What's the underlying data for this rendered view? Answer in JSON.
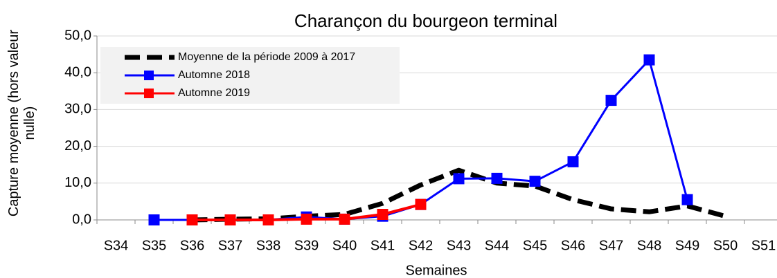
{
  "chart_data": {
    "type": "line",
    "title": "Charançon du bourgeon terminal",
    "x_label": "Semaines",
    "y_label": "Capture moyenne (hors valeur nulle)",
    "categories": [
      "S34",
      "S35",
      "S36",
      "S37",
      "S38",
      "S39",
      "S40",
      "S41",
      "S42",
      "S43",
      "S44",
      "S45",
      "S46",
      "S47",
      "S48",
      "S49",
      "S50",
      "S51"
    ],
    "ylim": [
      0,
      50
    ],
    "yticks": [
      {
        "value": 0,
        "label": "0,0"
      },
      {
        "value": 10,
        "label": "10,0"
      },
      {
        "value": 20,
        "label": "20,0"
      },
      {
        "value": 30,
        "label": "30,0"
      },
      {
        "value": 40,
        "label": "40,0"
      },
      {
        "value": 50,
        "label": "50,0"
      }
    ],
    "grid": true,
    "legend": "upper left",
    "series": [
      {
        "name": "Moyenne de la période 2009 à 2017",
        "color": "#000000",
        "style": "dashed",
        "values": [
          null,
          null,
          0,
          0.2,
          0.3,
          1.0,
          1.5,
          4.5,
          9.5,
          13.5,
          10.0,
          9.2,
          5.5,
          3.0,
          2.2,
          3.8,
          1.0,
          null
        ]
      },
      {
        "name": "Automne 2018",
        "color": "#0000ff",
        "style": "solid",
        "values": [
          null,
          0,
          0,
          0,
          0,
          0.8,
          0.2,
          1.0,
          4.2,
          11.2,
          11.3,
          10.5,
          15.8,
          32.5,
          43.5,
          5.5,
          null,
          null
        ]
      },
      {
        "name": "Automne 2019",
        "color": "#ff0000",
        "style": "solid",
        "values": [
          null,
          null,
          0,
          0,
          0,
          0.2,
          0.2,
          1.5,
          4.2,
          null,
          null,
          null,
          null,
          null,
          null,
          null,
          null,
          null
        ]
      }
    ]
  }
}
